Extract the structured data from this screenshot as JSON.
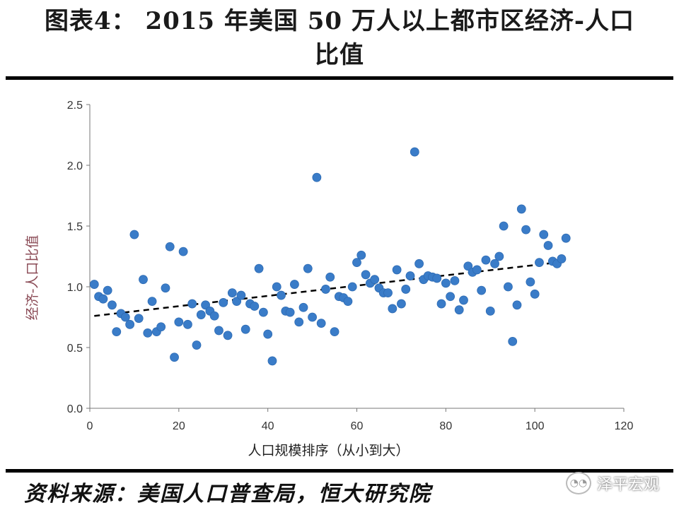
{
  "header": {
    "title_line1": "图表4：  2015 年美国 50 万人以上都市区经济-人口",
    "title_line2": "比值"
  },
  "footer": {
    "source": "资料来源：美国人口普查局，恒大研究院",
    "watermark": "泽平宏观"
  },
  "colors": {
    "point": "#3a7cc8",
    "point_edge": "#2e6bb3",
    "trend": "#000000"
  },
  "chart_data": {
    "type": "scatter",
    "xlabel": "人口规模排序（从小到大）",
    "ylabel": "经济-人口比值",
    "xlim": [
      0,
      120
    ],
    "ylim": [
      0,
      2.5
    ],
    "x_ticks": [
      0,
      20,
      40,
      60,
      80,
      100,
      120
    ],
    "y_ticks": [
      "0.0",
      "0.5",
      "1.0",
      "1.5",
      "2.0",
      "2.5"
    ],
    "grid": false,
    "trendline": {
      "style": "dashed",
      "x_start": 1,
      "x_end": 105,
      "y_start": 0.76,
      "y_end": 1.2
    },
    "points": [
      [
        1,
        1.02
      ],
      [
        2,
        0.92
      ],
      [
        3,
        0.9
      ],
      [
        4,
        0.97
      ],
      [
        5,
        0.85
      ],
      [
        6,
        0.63
      ],
      [
        7,
        0.78
      ],
      [
        8,
        0.75
      ],
      [
        9,
        0.69
      ],
      [
        10,
        1.43
      ],
      [
        11,
        0.74
      ],
      [
        12,
        1.06
      ],
      [
        13,
        0.62
      ],
      [
        14,
        0.88
      ],
      [
        15,
        0.63
      ],
      [
        16,
        0.67
      ],
      [
        17,
        0.99
      ],
      [
        18,
        1.33
      ],
      [
        19,
        0.42
      ],
      [
        20,
        0.71
      ],
      [
        21,
        1.29
      ],
      [
        22,
        0.69
      ],
      [
        23,
        0.86
      ],
      [
        24,
        0.52
      ],
      [
        25,
        0.77
      ],
      [
        26,
        0.85
      ],
      [
        27,
        0.8
      ],
      [
        28,
        0.76
      ],
      [
        29,
        0.64
      ],
      [
        30,
        0.87
      ],
      [
        31,
        0.6
      ],
      [
        32,
        0.95
      ],
      [
        33,
        0.88
      ],
      [
        34,
        0.93
      ],
      [
        35,
        0.65
      ],
      [
        36,
        0.86
      ],
      [
        37,
        0.84
      ],
      [
        38,
        1.15
      ],
      [
        39,
        0.79
      ],
      [
        40,
        0.61
      ],
      [
        41,
        0.39
      ],
      [
        42,
        1.0
      ],
      [
        43,
        0.93
      ],
      [
        44,
        0.8
      ],
      [
        45,
        0.79
      ],
      [
        46,
        1.02
      ],
      [
        47,
        0.71
      ],
      [
        48,
        0.83
      ],
      [
        49,
        1.15
      ],
      [
        50,
        0.75
      ],
      [
        51,
        1.9
      ],
      [
        52,
        0.7
      ],
      [
        53,
        0.98
      ],
      [
        54,
        1.08
      ],
      [
        55,
        0.63
      ],
      [
        56,
        0.92
      ],
      [
        57,
        0.91
      ],
      [
        58,
        0.88
      ],
      [
        59,
        1.0
      ],
      [
        60,
        1.2
      ],
      [
        61,
        1.26
      ],
      [
        62,
        1.1
      ],
      [
        63,
        1.03
      ],
      [
        64,
        1.06
      ],
      [
        65,
        0.99
      ],
      [
        66,
        0.95
      ],
      [
        67,
        0.95
      ],
      [
        68,
        0.82
      ],
      [
        69,
        1.14
      ],
      [
        70,
        0.86
      ],
      [
        71,
        0.98
      ],
      [
        72,
        1.09
      ],
      [
        73,
        2.11
      ],
      [
        74,
        1.19
      ],
      [
        75,
        1.06
      ],
      [
        76,
        1.09
      ],
      [
        77,
        1.08
      ],
      [
        78,
        1.07
      ],
      [
        79,
        0.86
      ],
      [
        80,
        1.03
      ],
      [
        81,
        0.92
      ],
      [
        82,
        1.05
      ],
      [
        83,
        0.81
      ],
      [
        84,
        0.89
      ],
      [
        85,
        1.17
      ],
      [
        86,
        1.12
      ],
      [
        87,
        1.14
      ],
      [
        88,
        0.97
      ],
      [
        89,
        1.22
      ],
      [
        90,
        0.8
      ],
      [
        91,
        1.19
      ],
      [
        92,
        1.25
      ],
      [
        93,
        1.5
      ],
      [
        94,
        1.0
      ],
      [
        95,
        0.55
      ],
      [
        96,
        0.85
      ],
      [
        97,
        1.64
      ],
      [
        98,
        1.47
      ],
      [
        99,
        1.04
      ],
      [
        100,
        0.94
      ],
      [
        101,
        1.2
      ],
      [
        102,
        1.43
      ],
      [
        103,
        1.34
      ],
      [
        104,
        1.21
      ],
      [
        105,
        1.19
      ],
      [
        106,
        1.23
      ],
      [
        107,
        1.4
      ]
    ]
  }
}
